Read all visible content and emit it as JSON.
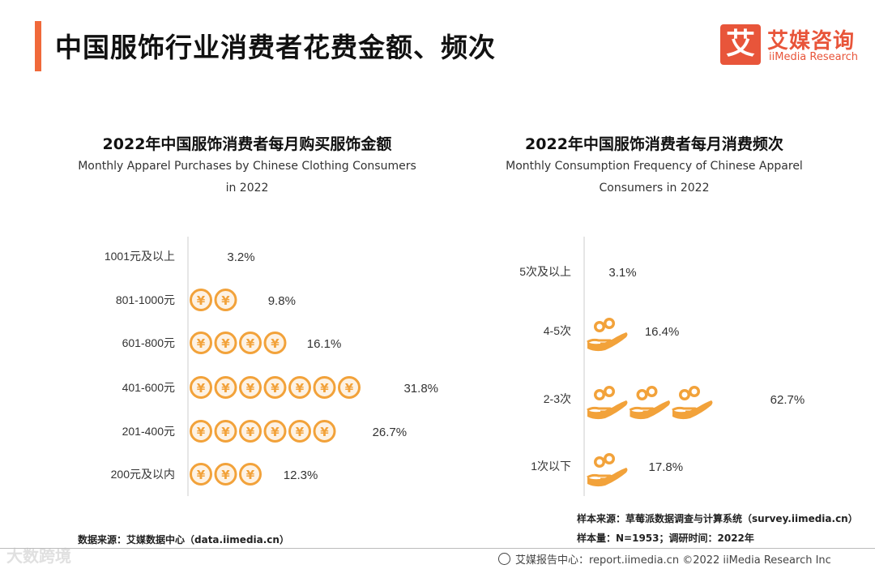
{
  "header": {
    "title": "中国服饰行业消费者花费金额、频次",
    "logo_glyph": "艾",
    "logo_cn": "艾媒咨询",
    "logo_en": "iiMedia Research",
    "accent_color": "#f0693a"
  },
  "left": {
    "title": "2022年中国服饰消费者每月购买服饰金额",
    "subtitle": "Monthly Apparel Purchases by Chinese Clothing Consumers in 2022",
    "source": "数据来源：艾媒数据中心（data.iimedia.cn）"
  },
  "right": {
    "title": "2022年中国服饰消费者每月消费频次",
    "subtitle": "Monthly Consumption Frequency of Chinese Apparel Consumers in 2022",
    "source_line1": "样本来源：草莓派数据调查与计算系统（survey.iimedia.cn）",
    "source_line2": "样本量：N=1953；调研时间：2022年"
  },
  "chart_data": [
    {
      "type": "bar",
      "title": "2022年中国服饰消费者每月购买服饰金额",
      "subtitle": "Monthly Apparel Purchases by Chinese Clothing Consumers in 2022",
      "categories": [
        "1001元及以上",
        "801-1000元",
        "601-800元",
        "401-600元",
        "201-400元",
        "200元及以内"
      ],
      "values": [
        3.2,
        9.8,
        16.1,
        31.8,
        26.7,
        12.3
      ],
      "value_labels": [
        "3.2%",
        "9.8%",
        "16.1%",
        "31.8%",
        "26.7%",
        "12.3%"
      ],
      "unit": "%",
      "icon": "yuan-coin-icon",
      "icon_unit_value": 4,
      "orientation": "horizontal"
    },
    {
      "type": "bar",
      "title": "2022年中国服饰消费者每月消费频次",
      "subtitle": "Monthly Consumption Frequency of Chinese Apparel Consumers in 2022",
      "categories": [
        "5次及以上",
        "4-5次",
        "2-3次",
        "1次以下"
      ],
      "values": [
        3.1,
        16.4,
        62.7,
        17.8
      ],
      "value_labels": [
        "3.1%",
        "16.4%",
        "62.7%",
        "17.8%"
      ],
      "unit": "%",
      "icon": "hand-coins-icon",
      "icon_unit_value": 15.7,
      "orientation": "horizontal"
    }
  ],
  "footer": {
    "watermark": "大数跨境",
    "text": "艾媒报告中心：report.iimedia.cn  ©2022  iiMedia Research  Inc"
  },
  "colors": {
    "orange": "#f2a23a",
    "coin_fill": "#fdf2e4",
    "axis": "#cccccc"
  }
}
